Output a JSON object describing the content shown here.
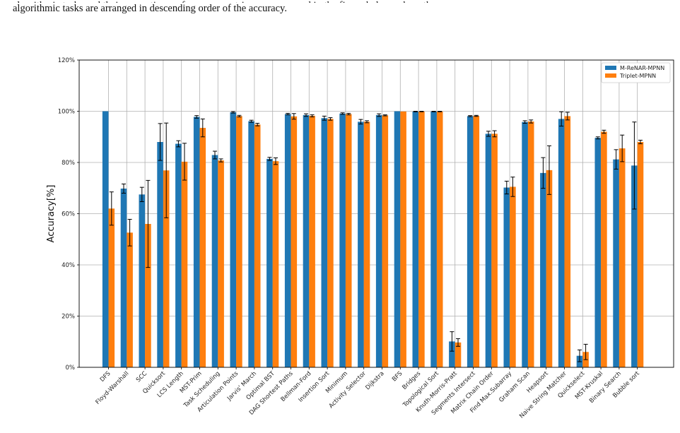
{
  "caption": {
    "line1": "algorithmic tasks and their respective performance metrics are compared in the figure below, where the",
    "line2": "algorithmic tasks are arranged in descending order of the accuracy."
  },
  "chart_data": {
    "type": "bar",
    "title": "",
    "xlabel": "",
    "ylabel": "Accuracy[%]",
    "ylim": [
      0,
      120
    ],
    "yticks": [
      "0%",
      "20%",
      "40%",
      "60%",
      "80%",
      "100%",
      "120%"
    ],
    "grid": true,
    "legend_position": "top-right",
    "categories": [
      "DFS",
      "Floyd-Warshall",
      "SCC",
      "Quicksort",
      "LCS Length",
      "MST-Prim",
      "Task Scheduling",
      "Articulation Points",
      "Jarvis' March",
      "Optimal BST",
      "DAG Shortest Paths",
      "Bellman-Ford",
      "Insertion Sort",
      "Minimum",
      "Activity Selector",
      "Dijkstra",
      "BFS",
      "Bridges",
      "Topological Sort",
      "Knuth-Morris-Pratt",
      "Segments Intersect",
      "Matrix Chain Order",
      "Find Max.Subarray",
      "Graham Scan",
      "Heapsort",
      "Naive String Matcher",
      "Quickselect",
      "MST-Kruskal",
      "Binary Search",
      "Bubble sort"
    ],
    "series": [
      {
        "name": "M-ReNAR-MPNN",
        "color": "#1f77b4",
        "values": [
          100,
          69.8,
          67.5,
          88,
          87.3,
          97.8,
          82.9,
          99.6,
          96.1,
          81.4,
          98.9,
          98.5,
          97.3,
          99.1,
          95.9,
          98.5,
          100,
          99.9,
          99.9,
          10.1,
          98.1,
          91.2,
          70.2,
          95.8,
          75.9,
          97,
          4.5,
          89.6,
          81.2,
          78.8
        ],
        "errors": [
          0,
          1.8,
          2.8,
          7.2,
          1.2,
          0.5,
          1.5,
          0.3,
          0.4,
          0.6,
          0.3,
          0.5,
          0.8,
          0.3,
          0.9,
          0.5,
          0,
          0.1,
          0.1,
          3.8,
          0.2,
          1,
          2.5,
          0.5,
          6,
          2.8,
          2.3,
          0.4,
          3.8,
          17
        ]
      },
      {
        "name": "Triplet-MPNN",
        "color": "#ff7f0e",
        "values": [
          62,
          52.6,
          56,
          76.9,
          80.3,
          93.5,
          80.8,
          98.1,
          94.8,
          80.5,
          98,
          98.2,
          97,
          98.9,
          95.9,
          98.4,
          99.9,
          99.9,
          99.9,
          9.7,
          98.2,
          91.2,
          70.5,
          96,
          77,
          98.1,
          6,
          92,
          85.5,
          88
        ],
        "errors": [
          6.5,
          5.2,
          17,
          18.5,
          7.2,
          3.5,
          0.6,
          0.3,
          0.5,
          1.3,
          1.1,
          0.4,
          0.5,
          0.3,
          0.4,
          0.2,
          0,
          0.1,
          0.1,
          1.5,
          0.2,
          1.2,
          3.8,
          0.6,
          9.5,
          1.5,
          3,
          0.6,
          5.2,
          0.7
        ]
      }
    ]
  }
}
